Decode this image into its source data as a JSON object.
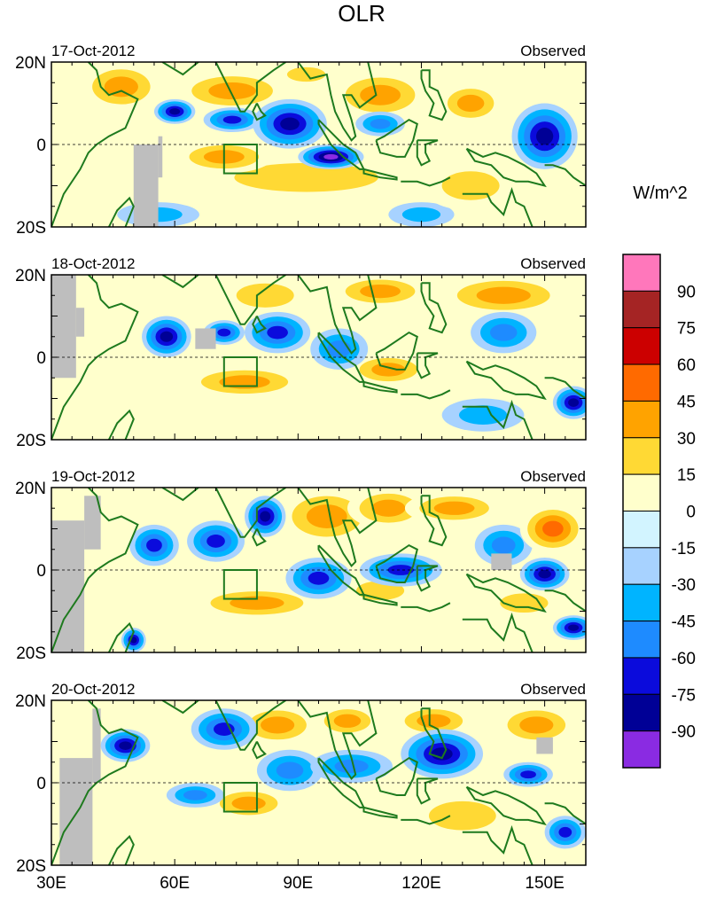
{
  "chart_data": {
    "type": "heatmap",
    "title": "OLR",
    "units": "W/m^2",
    "panel_right_label": "Observed",
    "lon_range": [
      30,
      160
    ],
    "lat_range": [
      -20,
      20
    ],
    "x_ticks": [
      {
        "value": 30,
        "label": "30E"
      },
      {
        "value": 60,
        "label": "60E"
      },
      {
        "value": 90,
        "label": "90E"
      },
      {
        "value": 120,
        "label": "120E"
      },
      {
        "value": 150,
        "label": "150E"
      }
    ],
    "y_ticks": [
      {
        "value": 20,
        "label": "20N"
      },
      {
        "value": 0,
        "label": "0"
      },
      {
        "value": -20,
        "label": "20S"
      }
    ],
    "box_region": {
      "lon": [
        72,
        80
      ],
      "lat": [
        -7,
        0
      ]
    },
    "colorbar": {
      "levels": [
        90,
        75,
        60,
        45,
        30,
        15,
        0,
        -15,
        -30,
        -45,
        -60,
        -75,
        -90
      ],
      "colors": [
        "#ff77bb",
        "#a52424",
        "#cc0000",
        "#ff6a00",
        "#ffa300",
        "#ffd934",
        "#ffffcc",
        "#d2f4ff",
        "#a7d2ff",
        "#00b4ff",
        "#1e8bff",
        "#0b0bdc",
        "#000096",
        "#8a2be2"
      ]
    },
    "panels": [
      {
        "date": "17-Oct-2012",
        "blobs": [
          {
            "lon": 47,
            "lat": 14,
            "rx": 10,
            "ry": 6,
            "v": 34
          },
          {
            "lon": 74,
            "lat": 13,
            "rx": 14,
            "ry": 5,
            "v": 38
          },
          {
            "lon": 92,
            "lat": 17,
            "rx": 8,
            "ry": 3,
            "v": 30
          },
          {
            "lon": 110,
            "lat": 12,
            "rx": 12,
            "ry": 6,
            "v": 40
          },
          {
            "lon": 132,
            "lat": 10,
            "rx": 8,
            "ry": 5,
            "v": 32
          },
          {
            "lon": 92,
            "lat": -8,
            "rx": 30,
            "ry": 6,
            "v": 28
          },
          {
            "lon": 72,
            "lat": -3,
            "rx": 12,
            "ry": 4,
            "v": 44
          },
          {
            "lon": 132,
            "lat": -10,
            "rx": 12,
            "ry": 6,
            "v": 30
          },
          {
            "lon": 60,
            "lat": 8,
            "rx": 5,
            "ry": 3,
            "v": -70
          },
          {
            "lon": 74,
            "lat": 6,
            "rx": 7,
            "ry": 3,
            "v": -50
          },
          {
            "lon": 88,
            "lat": 5,
            "rx": 9,
            "ry": 6,
            "v": -62
          },
          {
            "lon": 98,
            "lat": -3,
            "rx": 8,
            "ry": 3,
            "v": -84
          },
          {
            "lon": 110,
            "lat": 5,
            "rx": 6,
            "ry": 3,
            "v": -42
          },
          {
            "lon": 150,
            "lat": 2,
            "rx": 8,
            "ry": 8,
            "v": -74
          },
          {
            "lon": 56,
            "lat": -17,
            "rx": 10,
            "ry": 3,
            "v": -30
          },
          {
            "lon": 120,
            "lat": -17,
            "rx": 8,
            "ry": 3,
            "v": -28
          }
        ],
        "missing": [
          {
            "lon": [
              50,
              56
            ],
            "lat": [
              -20,
              0
            ]
          },
          {
            "lon": [
              56,
              57
            ],
            "lat": [
              -8,
              2
            ]
          }
        ]
      },
      {
        "date": "18-Oct-2012",
        "blobs": [
          {
            "lon": 82,
            "lat": 15,
            "rx": 12,
            "ry": 5,
            "v": 28
          },
          {
            "lon": 110,
            "lat": 16,
            "rx": 12,
            "ry": 4,
            "v": 40
          },
          {
            "lon": 140,
            "lat": 15,
            "rx": 16,
            "ry": 5,
            "v": 38
          },
          {
            "lon": 77,
            "lat": -6,
            "rx": 15,
            "ry": 4,
            "v": 38
          },
          {
            "lon": 112,
            "lat": -3,
            "rx": 10,
            "ry": 4,
            "v": 32
          },
          {
            "lon": 58,
            "lat": 5,
            "rx": 6,
            "ry": 5,
            "v": -64
          },
          {
            "lon": 72,
            "lat": 6,
            "rx": 5,
            "ry": 3,
            "v": -58
          },
          {
            "lon": 85,
            "lat": 6,
            "rx": 8,
            "ry": 5,
            "v": -55
          },
          {
            "lon": 100,
            "lat": 2,
            "rx": 7,
            "ry": 5,
            "v": -38
          },
          {
            "lon": 140,
            "lat": 6,
            "rx": 8,
            "ry": 5,
            "v": -45
          },
          {
            "lon": 157,
            "lat": -11,
            "rx": 5,
            "ry": 4,
            "v": -72
          },
          {
            "lon": 135,
            "lat": -14,
            "rx": 10,
            "ry": 4,
            "v": -22
          }
        ],
        "missing": [
          {
            "lon": [
              30,
              36
            ],
            "lat": [
              -5,
              20
            ]
          },
          {
            "lon": [
              36,
              38
            ],
            "lat": [
              5,
              12
            ]
          },
          {
            "lon": [
              65,
              70
            ],
            "lat": [
              2,
              7
            ]
          }
        ]
      },
      {
        "date": "19-Oct-2012",
        "blobs": [
          {
            "lon": 97,
            "lat": 13,
            "rx": 12,
            "ry": 7,
            "v": 34
          },
          {
            "lon": 112,
            "lat": 15,
            "rx": 10,
            "ry": 5,
            "v": 36
          },
          {
            "lon": 128,
            "lat": 15,
            "rx": 12,
            "ry": 4,
            "v": 38
          },
          {
            "lon": 152,
            "lat": 10,
            "rx": 8,
            "ry": 6,
            "v": 46
          },
          {
            "lon": 80,
            "lat": -8,
            "rx": 16,
            "ry": 4,
            "v": 38
          },
          {
            "lon": 110,
            "lat": -5,
            "rx": 10,
            "ry": 4,
            "v": 22
          },
          {
            "lon": 145,
            "lat": -8,
            "rx": 10,
            "ry": 4,
            "v": 24
          },
          {
            "lon": 55,
            "lat": 6,
            "rx": 6,
            "ry": 5,
            "v": -50
          },
          {
            "lon": 70,
            "lat": 7,
            "rx": 7,
            "ry": 5,
            "v": -60
          },
          {
            "lon": 82,
            "lat": 13,
            "rx": 5,
            "ry": 5,
            "v": -75
          },
          {
            "lon": 95,
            "lat": -2,
            "rx": 8,
            "ry": 5,
            "v": -48
          },
          {
            "lon": 115,
            "lat": 0,
            "rx": 10,
            "ry": 4,
            "v": -48
          },
          {
            "lon": 140,
            "lat": 6,
            "rx": 7,
            "ry": 5,
            "v": -40
          },
          {
            "lon": 150,
            "lat": -1,
            "rx": 6,
            "ry": 4,
            "v": -66
          },
          {
            "lon": 50,
            "lat": -17,
            "rx": 3,
            "ry": 3,
            "v": -70
          },
          {
            "lon": 157,
            "lat": -14,
            "rx": 5,
            "ry": 3,
            "v": -72
          }
        ],
        "missing": [
          {
            "lon": [
              30,
              38
            ],
            "lat": [
              -20,
              12
            ]
          },
          {
            "lon": [
              38,
              42
            ],
            "lat": [
              5,
              18
            ]
          },
          {
            "lon": [
              137,
              142
            ],
            "lat": [
              0,
              4
            ]
          }
        ]
      },
      {
        "date": "20-Oct-2012",
        "blobs": [
          {
            "lon": 85,
            "lat": 14,
            "rx": 10,
            "ry": 5,
            "v": 40
          },
          {
            "lon": 102,
            "lat": 15,
            "rx": 8,
            "ry": 4,
            "v": 38
          },
          {
            "lon": 123,
            "lat": 15,
            "rx": 10,
            "ry": 4,
            "v": 36
          },
          {
            "lon": 148,
            "lat": 14,
            "rx": 10,
            "ry": 5,
            "v": 36
          },
          {
            "lon": 78,
            "lat": -5,
            "rx": 10,
            "ry": 4,
            "v": 34
          },
          {
            "lon": 130,
            "lat": -8,
            "rx": 14,
            "ry": 6,
            "v": 30
          },
          {
            "lon": 48,
            "lat": 9,
            "rx": 6,
            "ry": 4,
            "v": -62
          },
          {
            "lon": 72,
            "lat": 13,
            "rx": 8,
            "ry": 5,
            "v": -58
          },
          {
            "lon": 88,
            "lat": 3,
            "rx": 8,
            "ry": 5,
            "v": -38
          },
          {
            "lon": 103,
            "lat": 4,
            "rx": 10,
            "ry": 4,
            "v": -42
          },
          {
            "lon": 125,
            "lat": 7,
            "rx": 10,
            "ry": 6,
            "v": -62
          },
          {
            "lon": 146,
            "lat": 2,
            "rx": 6,
            "ry": 3,
            "v": -56
          },
          {
            "lon": 65,
            "lat": -3,
            "rx": 7,
            "ry": 3,
            "v": -45
          },
          {
            "lon": 155,
            "lat": -12,
            "rx": 5,
            "ry": 4,
            "v": -60
          }
        ],
        "missing": [
          {
            "lon": [
              32,
              40
            ],
            "lat": [
              -20,
              6
            ]
          },
          {
            "lon": [
              40,
              42
            ],
            "lat": [
              0,
              18
            ]
          },
          {
            "lon": [
              148,
              152
            ],
            "lat": [
              7,
              11
            ]
          }
        ]
      }
    ]
  }
}
